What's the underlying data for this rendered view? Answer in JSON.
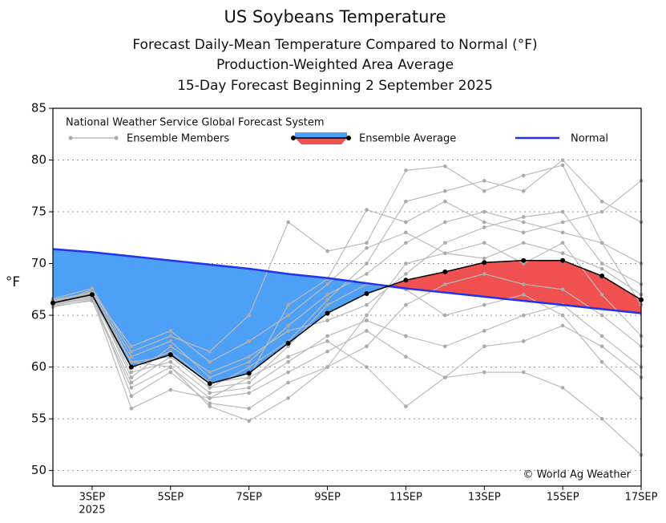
{
  "chart_data": {
    "type": "ensemble-line",
    "title": "US Soybeans Temperature",
    "subtitles": [
      "Forecast Daily-Mean Temperature Compared to Normal (°F)",
      "Production-Weighted Area Average",
      "15-Day Forecast Beginning 2 September 2025"
    ],
    "y_label": "°F",
    "legend_title": "National Weather Service Global Forecast System",
    "source": "© World Ag Weather",
    "x": [
      2,
      3,
      4,
      5,
      6,
      7,
      8,
      9,
      10,
      11,
      12,
      13,
      14,
      15,
      16,
      17
    ],
    "xlim": [
      2,
      17
    ],
    "xticks": [
      {
        "value": 3,
        "label": "3SEP"
      },
      {
        "value": 5,
        "label": "5SEP"
      },
      {
        "value": 7,
        "label": "7SEP"
      },
      {
        "value": 9,
        "label": "9SEP"
      },
      {
        "value": 11,
        "label": "11SEP"
      },
      {
        "value": 13,
        "label": "13SEP"
      },
      {
        "value": 15,
        "label": "15SEP"
      },
      {
        "value": 17,
        "label": "17SEP"
      }
    ],
    "xtick_year": "2025",
    "ylim": [
      48.5,
      85
    ],
    "yticks": [
      50,
      55,
      60,
      65,
      70,
      75,
      80,
      85
    ],
    "grid": true,
    "members_label": "Ensemble Members",
    "members_color": "#bbbbbb",
    "members": [
      [
        66.0,
        67.5,
        61.0,
        62.5,
        59.0,
        60.5,
        64.0,
        67.0,
        69.0,
        72.0,
        74.0,
        75.0,
        74.0,
        73.0,
        72.0,
        70.0
      ],
      [
        66.3,
        66.8,
        59.5,
        60.5,
        57.5,
        58.0,
        60.5,
        63.0,
        64.5,
        63.0,
        62.0,
        63.5,
        65.0,
        66.0,
        63.0,
        60.0
      ],
      [
        65.8,
        66.5,
        58.5,
        61.0,
        58.0,
        60.0,
        62.5,
        66.5,
        70.0,
        76.0,
        77.0,
        78.0,
        77.0,
        80.0,
        76.0,
        74.0
      ],
      [
        66.5,
        67.2,
        62.0,
        63.5,
        60.5,
        62.5,
        65.0,
        68.0,
        71.5,
        73.0,
        71.0,
        72.0,
        70.0,
        72.0,
        67.0,
        63.0
      ],
      [
        66.1,
        66.9,
        60.5,
        60.0,
        57.0,
        57.5,
        59.5,
        61.5,
        63.5,
        61.0,
        59.0,
        59.5,
        59.5,
        58.0,
        55.0,
        51.5
      ],
      [
        66.4,
        67.1,
        59.0,
        62.0,
        59.5,
        61.0,
        63.5,
        64.5,
        66.0,
        69.0,
        72.0,
        73.5,
        74.5,
        75.0,
        70.0,
        68.0
      ],
      [
        66.0,
        66.6,
        60.0,
        61.5,
        58.5,
        59.0,
        61.0,
        62.5,
        60.0,
        56.2,
        59.0,
        62.0,
        62.5,
        64.0,
        62.0,
        59.0
      ],
      [
        66.2,
        67.0,
        57.2,
        59.5,
        56.5,
        56.0,
        58.5,
        60.0,
        62.0,
        66.0,
        68.0,
        69.0,
        68.0,
        67.5,
        65.0,
        62.0
      ],
      [
        66.6,
        67.6,
        61.5,
        63.0,
        61.5,
        65.0,
        74.0,
        71.2,
        72.0,
        79.0,
        79.4,
        77.0,
        78.5,
        79.5,
        72.0,
        66.0
      ],
      [
        65.9,
        66.4,
        58.0,
        60.0,
        56.2,
        54.8,
        57.0,
        60.0,
        65.0,
        70.0,
        71.0,
        70.5,
        72.0,
        71.0,
        69.5,
        67.0
      ],
      [
        66.3,
        67.3,
        60.5,
        61.0,
        58.0,
        58.5,
        62.0,
        66.0,
        68.0,
        67.5,
        65.0,
        66.0,
        67.0,
        65.0,
        60.5,
        57.0
      ],
      [
        66.1,
        66.7,
        56.0,
        57.8,
        57.0,
        59.0,
        66.0,
        68.5,
        75.2,
        74.0,
        76.0,
        74.0,
        73.0,
        74.0,
        75.0,
        78.0
      ]
    ],
    "below_color": "#4da0f5",
    "above_color": "#f05050",
    "series": [
      {
        "name": "Ensemble Average",
        "color": "#000000",
        "values": [
          66.2,
          67.0,
          60.0,
          61.2,
          58.4,
          59.4,
          62.3,
          65.2,
          67.1,
          68.4,
          69.2,
          70.1,
          70.3,
          70.3,
          68.8,
          66.5
        ]
      },
      {
        "name": "Normal",
        "color": "#2233ee",
        "values": [
          71.4,
          71.1,
          70.7,
          70.3,
          69.9,
          69.5,
          69.0,
          68.6,
          68.1,
          67.6,
          67.2,
          66.8,
          66.4,
          66.0,
          65.6,
          65.2
        ]
      }
    ]
  }
}
